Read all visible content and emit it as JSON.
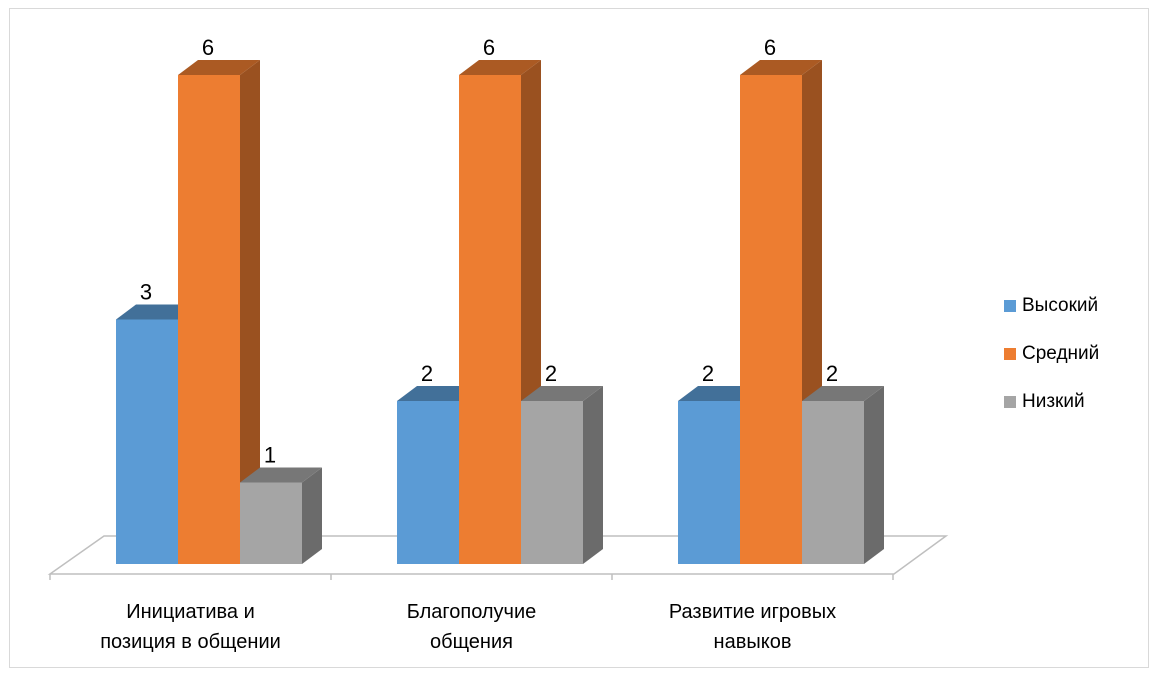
{
  "chart_data": {
    "type": "bar",
    "categories": [
      "Инициатива и позиция в общении",
      "Благополучие общения",
      "Развитие игровых навыков"
    ],
    "category_lines": [
      [
        "Инициатива и",
        "позиция в общении"
      ],
      [
        "Благополучие",
        "общения"
      ],
      [
        "Развитие игровых",
        "навыков"
      ]
    ],
    "series": [
      {
        "name": "Высокий",
        "values": [
          3,
          2,
          2
        ],
        "color": "#5b9bd5"
      },
      {
        "name": "Средний",
        "values": [
          6,
          6,
          6
        ],
        "color": "#ed7d31"
      },
      {
        "name": "Низкий",
        "values": [
          1,
          2,
          2
        ],
        "color": "#a5a5a5"
      }
    ],
    "ylim": [
      0,
      6
    ],
    "grid": false,
    "legend_position": "right",
    "data_labels": true,
    "style": "3d-column"
  }
}
